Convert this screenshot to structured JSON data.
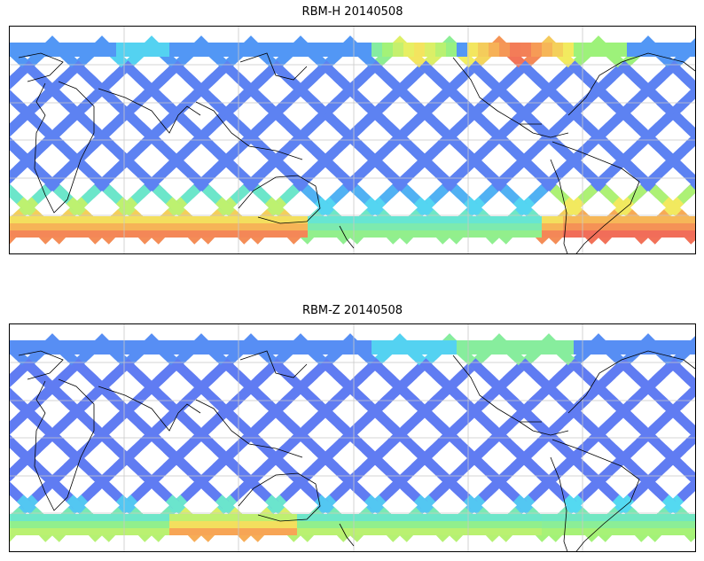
{
  "panels": [
    {
      "title": "RBM-H 20140508",
      "field": "rbm_h",
      "gradient_stops": [
        "#6a6af0",
        "#4f9cf5",
        "#55e0f0",
        "#9df27a",
        "#f2ee60",
        "#f7a555",
        "#ef5a5a"
      ]
    },
    {
      "title": "RBM-Z 20140508",
      "field": "rbm_z",
      "gradient_stops": [
        "#6a6af0",
        "#4f9cf5",
        "#55e0f0",
        "#9df27a",
        "#f2ee60",
        "#f7a555",
        "#ef5a5a"
      ]
    }
  ],
  "map": {
    "projection": "plate-carree",
    "central_longitude": 180,
    "gridlines": true,
    "coastlines": true,
    "swath_color": "#6a6af0",
    "coast_color": "#000000",
    "grid_color": "#c8c8c8"
  }
}
